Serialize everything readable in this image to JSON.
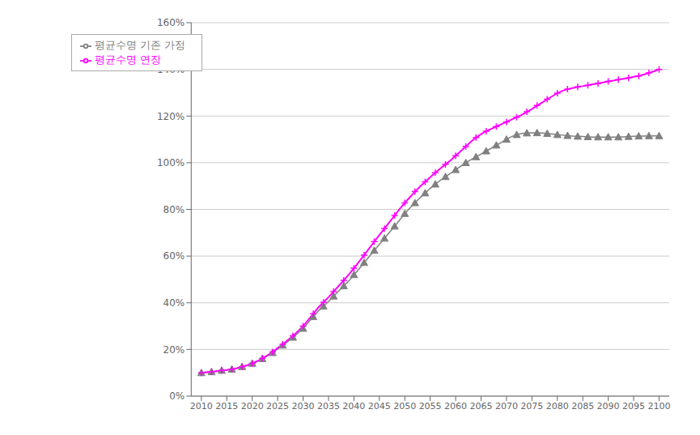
{
  "chart_data": {
    "type": "line",
    "x": [
      2010,
      2011,
      2012,
      2013,
      2014,
      2015,
      2016,
      2017,
      2018,
      2019,
      2020,
      2021,
      2022,
      2023,
      2024,
      2025,
      2026,
      2027,
      2028,
      2029,
      2030,
      2031,
      2032,
      2033,
      2034,
      2035,
      2036,
      2037,
      2038,
      2039,
      2040,
      2041,
      2042,
      2043,
      2044,
      2045,
      2046,
      2047,
      2048,
      2049,
      2050,
      2051,
      2052,
      2053,
      2054,
      2055,
      2056,
      2057,
      2058,
      2059,
      2060,
      2061,
      2062,
      2063,
      2064,
      2065,
      2066,
      2067,
      2068,
      2069,
      2070,
      2071,
      2072,
      2073,
      2074,
      2075,
      2076,
      2077,
      2078,
      2079,
      2080,
      2081,
      2082,
      2083,
      2084,
      2085,
      2086,
      2087,
      2088,
      2089,
      2090,
      2091,
      2092,
      2093,
      2094,
      2095,
      2096,
      2097,
      2098,
      2099,
      2100
    ],
    "series": [
      {
        "name": "평균수명 기존 가정",
        "color": "#808080",
        "marker": "triangle",
        "values": [
          0.1,
          0.102,
          0.104,
          0.107,
          0.11,
          0.112,
          0.115,
          0.12,
          0.126,
          0.132,
          0.14,
          0.15,
          0.16,
          0.172,
          0.186,
          0.202,
          0.218,
          0.234,
          0.252,
          0.27,
          0.29,
          0.315,
          0.34,
          0.365,
          0.385,
          0.405,
          0.428,
          0.45,
          0.472,
          0.494,
          0.52,
          0.545,
          0.572,
          0.598,
          0.624,
          0.65,
          0.676,
          0.702,
          0.728,
          0.755,
          0.782,
          0.806,
          0.828,
          0.85,
          0.87,
          0.89,
          0.908,
          0.925,
          0.94,
          0.955,
          0.97,
          0.985,
          1.0,
          1.013,
          1.025,
          1.037,
          1.05,
          1.062,
          1.075,
          1.087,
          1.1,
          1.112,
          1.12,
          1.125,
          1.127,
          1.128,
          1.128,
          1.127,
          1.125,
          1.123,
          1.12,
          1.118,
          1.116,
          1.114,
          1.113,
          1.112,
          1.111,
          1.11,
          1.11,
          1.11,
          1.11,
          1.11,
          1.11,
          1.111,
          1.112,
          1.113,
          1.114,
          1.114,
          1.115,
          1.115,
          1.115
        ]
      },
      {
        "name": "평균수명 연장",
        "color": "#FF00FF",
        "marker": "plus",
        "values": [
          0.1,
          0.102,
          0.104,
          0.107,
          0.11,
          0.112,
          0.115,
          0.12,
          0.126,
          0.132,
          0.14,
          0.15,
          0.162,
          0.175,
          0.189,
          0.206,
          0.222,
          0.24,
          0.258,
          0.278,
          0.3,
          0.326,
          0.353,
          0.38,
          0.402,
          0.424,
          0.448,
          0.472,
          0.496,
          0.521,
          0.548,
          0.576,
          0.604,
          0.633,
          0.662,
          0.69,
          0.718,
          0.746,
          0.774,
          0.802,
          0.828,
          0.852,
          0.876,
          0.898,
          0.918,
          0.938,
          0.957,
          0.975,
          0.993,
          1.01,
          1.03,
          1.05,
          1.07,
          1.09,
          1.108,
          1.122,
          1.135,
          1.145,
          1.155,
          1.165,
          1.175,
          1.185,
          1.195,
          1.205,
          1.218,
          1.23,
          1.245,
          1.258,
          1.272,
          1.285,
          1.298,
          1.308,
          1.315,
          1.32,
          1.325,
          1.328,
          1.332,
          1.336,
          1.34,
          1.344,
          1.348,
          1.352,
          1.356,
          1.36,
          1.363,
          1.368,
          1.372,
          1.378,
          1.385,
          1.392,
          1.4
        ]
      }
    ],
    "xlim": [
      2008,
      2102
    ],
    "xticks": [
      2010,
      2015,
      2020,
      2025,
      2030,
      2035,
      2040,
      2045,
      2050,
      2055,
      2060,
      2065,
      2070,
      2075,
      2080,
      2085,
      2090,
      2095,
      2100
    ],
    "ylim": [
      0.0,
      1.6
    ],
    "yticks": [
      {
        "value": 0.0,
        "label": "0%"
      },
      {
        "value": 0.2,
        "label": "20%"
      },
      {
        "value": 0.4,
        "label": "40%"
      },
      {
        "value": 0.6,
        "label": "60%"
      },
      {
        "value": 0.8,
        "label": "80%"
      },
      {
        "value": 1.0,
        "label": "100%"
      },
      {
        "value": 1.2,
        "label": "120%"
      },
      {
        "value": 1.4,
        "label": "140%"
      },
      {
        "value": 1.6,
        "label": "160%"
      }
    ],
    "grid": "y",
    "legend": "upper left"
  }
}
